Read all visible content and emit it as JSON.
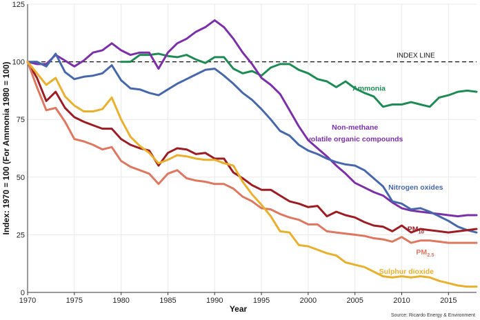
{
  "chart_data": {
    "type": "line",
    "xlabel": "Year",
    "ylabel": "Index: 1970 = 100 (For Ammonia 1980 = 100)",
    "xlim": [
      1970,
      2018
    ],
    "ylim": [
      0,
      125
    ],
    "xticks": [
      1970,
      1975,
      1980,
      1985,
      1990,
      1995,
      2000,
      2005,
      2010,
      2015
    ],
    "yticks": [
      0,
      25,
      50,
      75,
      100,
      125
    ],
    "grid": true,
    "index_line": {
      "value": 100,
      "label": "INDEX LINE"
    },
    "source": "Source: Ricardo Energy & Environment",
    "series": [
      {
        "name": "Ammonia",
        "color": "#1e8a54",
        "x": [
          1980,
          1981,
          1982,
          1983,
          1984,
          1985,
          1986,
          1987,
          1988,
          1989,
          1990,
          1991,
          1992,
          1993,
          1994,
          1995,
          1996,
          1997,
          1998,
          1999,
          2000,
          2001,
          2002,
          2003,
          2004,
          2005,
          2006,
          2007,
          2008,
          2009,
          2010,
          2011,
          2012,
          2013,
          2014,
          2015,
          2016,
          2017,
          2018
        ],
        "y": [
          100,
          100,
          103,
          103,
          103.5,
          102.5,
          102,
          103,
          101,
          99.5,
          102,
          102,
          97,
          95,
          96,
          94,
          97.5,
          99,
          99,
          96.5,
          95,
          92.5,
          91.5,
          89,
          91.5,
          88.5,
          86.5,
          85,
          80.5,
          81.5,
          81.5,
          82.5,
          81.5,
          80.5,
          84.5,
          85.5,
          87,
          87.5,
          87
        ]
      },
      {
        "name": "Non-methane volatile organic compounds",
        "label_lines": [
          "Non-methane",
          "volatile organic compounds"
        ],
        "color": "#7b2fa8",
        "x": [
          1970,
          1971,
          1972,
          1973,
          1974,
          1975,
          1976,
          1977,
          1978,
          1979,
          1980,
          1981,
          1982,
          1983,
          1984,
          1985,
          1986,
          1987,
          1988,
          1989,
          1990,
          1991,
          1992,
          1993,
          1994,
          1995,
          1996,
          1997,
          1998,
          1999,
          2000,
          2001,
          2002,
          2003,
          2004,
          2005,
          2006,
          2007,
          2008,
          2009,
          2010,
          2011,
          2012,
          2013,
          2014,
          2015,
          2016,
          2017,
          2018
        ],
        "y": [
          100,
          99,
          99,
          103,
          100.5,
          98,
          100.5,
          104,
          105,
          108,
          105,
          103,
          104,
          104,
          97,
          104,
          108,
          110,
          113,
          115,
          118,
          115,
          110,
          104,
          99,
          93,
          90,
          86,
          79,
          72,
          66,
          62.5,
          59,
          55,
          51.5,
          47.5,
          45.5,
          43.5,
          42,
          39,
          36.5,
          35.5,
          35,
          34.5,
          34,
          33.5,
          33,
          33.5,
          33.5
        ]
      },
      {
        "name": "Nitrogen oxides",
        "color": "#4667aa",
        "x": [
          1970,
          1971,
          1972,
          1973,
          1974,
          1975,
          1976,
          1977,
          1978,
          1979,
          1980,
          1981,
          1982,
          1983,
          1984,
          1985,
          1986,
          1987,
          1988,
          1989,
          1990,
          1991,
          1992,
          1993,
          1994,
          1995,
          1996,
          1997,
          1998,
          1999,
          2000,
          2001,
          2002,
          2003,
          2004,
          2005,
          2006,
          2007,
          2008,
          2009,
          2010,
          2011,
          2012,
          2013,
          2014,
          2015,
          2016,
          2017,
          2018
        ],
        "y": [
          100,
          100,
          98,
          103.5,
          95.5,
          92.5,
          93.5,
          94,
          95,
          98.5,
          92,
          88.5,
          88,
          86.5,
          85.5,
          88,
          90.5,
          92.5,
          94.5,
          96.5,
          97,
          94,
          90.5,
          86.5,
          83.5,
          79.5,
          75,
          70,
          68,
          64,
          61.5,
          60,
          58,
          56.5,
          55.5,
          55,
          53,
          49.5,
          46,
          39.5,
          38.5,
          36,
          36.5,
          35,
          33,
          31,
          28.5,
          27,
          26
        ]
      },
      {
        "name": "PM10",
        "label_base": "PM",
        "label_sub": "10",
        "color": "#9b1c22",
        "x": [
          1970,
          1971,
          1972,
          1973,
          1974,
          1975,
          1976,
          1977,
          1978,
          1979,
          1980,
          1981,
          1982,
          1983,
          1984,
          1985,
          1986,
          1987,
          1988,
          1989,
          1990,
          1991,
          1992,
          1993,
          1994,
          1995,
          1996,
          1997,
          1998,
          1999,
          2000,
          2001,
          2002,
          2003,
          2004,
          2005,
          2006,
          2007,
          2008,
          2009,
          2010,
          2011,
          2012,
          2013,
          2014,
          2015,
          2016,
          2017,
          2018
        ],
        "y": [
          100,
          93,
          83,
          87,
          80,
          76,
          74,
          72.5,
          71,
          71,
          66.5,
          64,
          62.5,
          61.5,
          55,
          60.5,
          62.5,
          62,
          60,
          60.5,
          58,
          58,
          52,
          49.5,
          46.5,
          44.5,
          44.5,
          42,
          39.5,
          38.5,
          37,
          37.5,
          33,
          35,
          33.5,
          32.5,
          30.5,
          29,
          28.5,
          26.5,
          29,
          26,
          27.5,
          27,
          26.5,
          26,
          26.5,
          27,
          27.5
        ]
      },
      {
        "name": "PM2.5",
        "label_base": "PM",
        "label_sub": "2.5",
        "color": "#dd7760",
        "x": [
          1970,
          1971,
          1972,
          1973,
          1974,
          1975,
          1976,
          1977,
          1978,
          1979,
          1980,
          1981,
          1982,
          1983,
          1984,
          1985,
          1986,
          1987,
          1988,
          1989,
          1990,
          1991,
          1992,
          1993,
          1994,
          1995,
          1996,
          1997,
          1998,
          1999,
          2000,
          2001,
          2002,
          2003,
          2004,
          2005,
          2006,
          2007,
          2008,
          2009,
          2010,
          2011,
          2012,
          2013,
          2014,
          2015,
          2016,
          2017,
          2018
        ],
        "y": [
          100,
          89,
          79,
          80,
          74,
          66.5,
          65.5,
          64,
          62,
          63,
          57,
          54.5,
          53,
          51.5,
          47,
          51.5,
          53,
          49.5,
          48.5,
          48,
          47,
          47,
          45,
          41.5,
          39.5,
          36.5,
          36,
          34,
          32.5,
          31.5,
          29.5,
          29.5,
          26.5,
          26,
          25.5,
          25,
          24.5,
          23.5,
          23,
          22,
          24,
          21.5,
          22.5,
          22.5,
          22,
          21.5,
          21.5,
          21.5,
          21.5
        ]
      },
      {
        "name": "Sulphur dioxide",
        "color": "#e8b02d",
        "x": [
          1970,
          1971,
          1972,
          1973,
          1974,
          1975,
          1976,
          1977,
          1978,
          1979,
          1980,
          1981,
          1982,
          1983,
          1984,
          1985,
          1986,
          1987,
          1988,
          1989,
          1990,
          1991,
          1992,
          1993,
          1994,
          1995,
          1996,
          1997,
          1998,
          1999,
          2000,
          2001,
          2002,
          2003,
          2004,
          2005,
          2006,
          2007,
          2008,
          2009,
          2010,
          2011,
          2012,
          2013,
          2014,
          2015,
          2016,
          2017,
          2018
        ],
        "y": [
          100,
          95,
          90,
          93,
          85,
          81,
          78.5,
          78.5,
          79.5,
          84.5,
          75,
          67.5,
          63.5,
          60.5,
          56,
          57.5,
          59.5,
          59,
          58,
          57.5,
          57.5,
          56,
          55,
          48,
          42.5,
          38,
          33,
          26.5,
          26,
          20.5,
          20,
          18.5,
          17,
          16,
          13,
          12,
          11,
          9,
          7,
          6.5,
          7,
          6.5,
          7,
          6.5,
          5,
          4,
          3,
          2.5,
          2.5
        ]
      }
    ]
  }
}
